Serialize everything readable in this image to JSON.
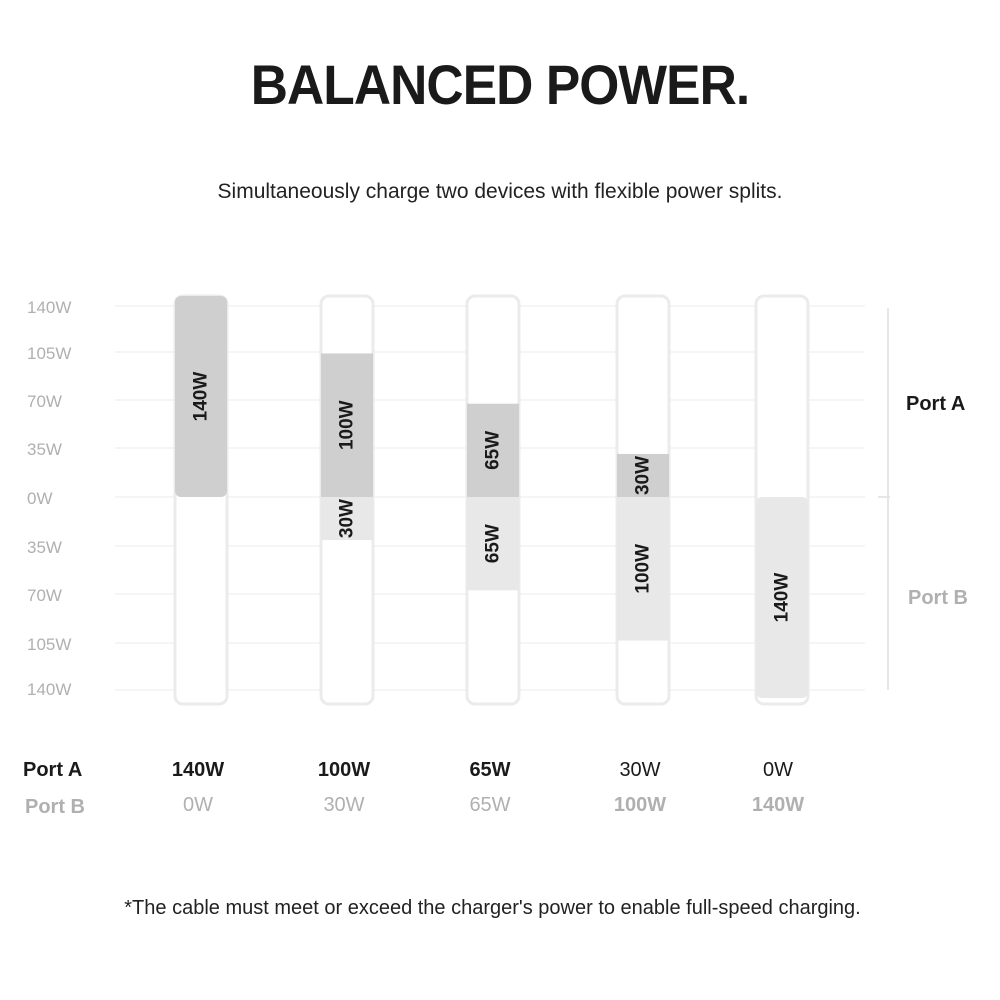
{
  "title": "BALANCED POWER.",
  "subtitle": "Simultaneously charge two devices with flexible power splits.",
  "footnote": "*The cable must meet or exceed the charger's power to enable full-speed charging.",
  "colors": {
    "port_a_fill": "#cfcfcf",
    "port_b_fill": "#e8e8e8",
    "track": "#ebebeb",
    "grid": "#f2f2f2",
    "axis_text": "#b0b0b0",
    "dark_text": "#1a1a1a"
  },
  "chart_data": {
    "type": "bar",
    "categories": [
      "140W/0W",
      "100W/30W",
      "65W/65W",
      "30W/100W",
      "0W/140W"
    ],
    "series": [
      {
        "name": "Port A",
        "values": [
          140,
          100,
          65,
          30,
          0
        ],
        "labels": [
          "140W",
          "100W",
          "65W",
          "30W",
          ""
        ]
      },
      {
        "name": "Port B",
        "values": [
          0,
          30,
          65,
          100,
          140
        ],
        "labels": [
          "",
          "30W",
          "65W",
          "100W",
          "140W"
        ]
      }
    ],
    "y_ticks_up": [
      "140W",
      "105W",
      "70W",
      "35W",
      "0W"
    ],
    "y_ticks_down": [
      "35W",
      "70W",
      "105W",
      "140W"
    ],
    "ylim": [
      -140,
      140
    ],
    "grid": true,
    "side_labels": {
      "top": "Port A",
      "bottom": "Port B"
    },
    "table": {
      "row_labels": [
        "Port A",
        "Port B"
      ],
      "port_a": [
        "140W",
        "100W",
        "65W",
        "30W",
        "0W"
      ],
      "port_b": [
        "0W",
        "30W",
        "65W",
        "100W",
        "140W"
      ]
    }
  }
}
